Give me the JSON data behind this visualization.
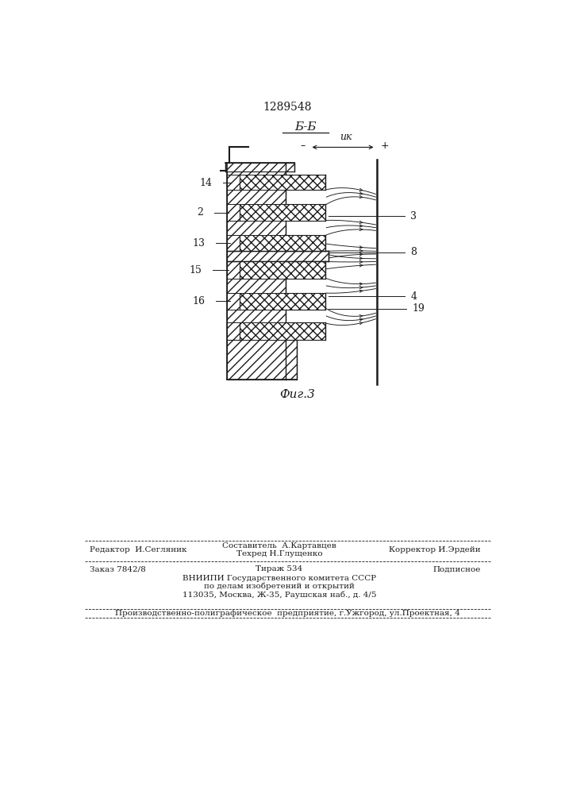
{
  "patent_number": "1289548",
  "section_label": "Б-Б",
  "figure_label": "Фиг.3",
  "voltage_label": "uк",
  "bg_color": "#ffffff",
  "line_color": "#1a1a1a",
  "footer_editor": "Редактор  И.Сегляник",
  "footer_compiler": "Составитель  А.Картавцев",
  "footer_techred": "Техред Н.Глущенко",
  "footer_corrector": "Корректор И.Эрдейи",
  "footer_order": "Заказ 7842/8",
  "footer_tirazh": "Тираж 534",
  "footer_podpisnoe": "Подписное",
  "footer_vniiipi1": "ВНИИПИ Государственного комитета СССР",
  "footer_vniiipi2": "по делам изобретений и открытий",
  "footer_vniiipi3": "113035, Москва, Ж-35, Раушская наб., д. 4/5",
  "footer_production": "Производственно-полиграфическое  предприятие, г.Ужгород, ул.Проектная, 4"
}
